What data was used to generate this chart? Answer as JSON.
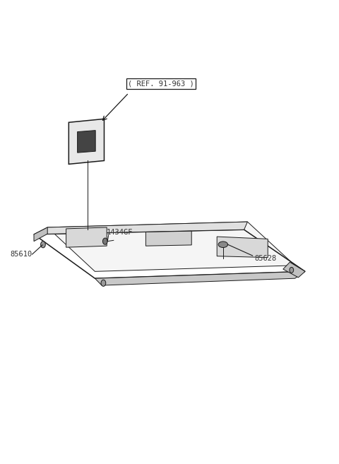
{
  "bg_color": "#ffffff",
  "line_color": "#1a1a1a",
  "text_color": "#333333",
  "ref_label": "( REF. 91-963 )",
  "label_85610": "85610",
  "label_85628": "85628",
  "label_1434GF": "1434GF"
}
